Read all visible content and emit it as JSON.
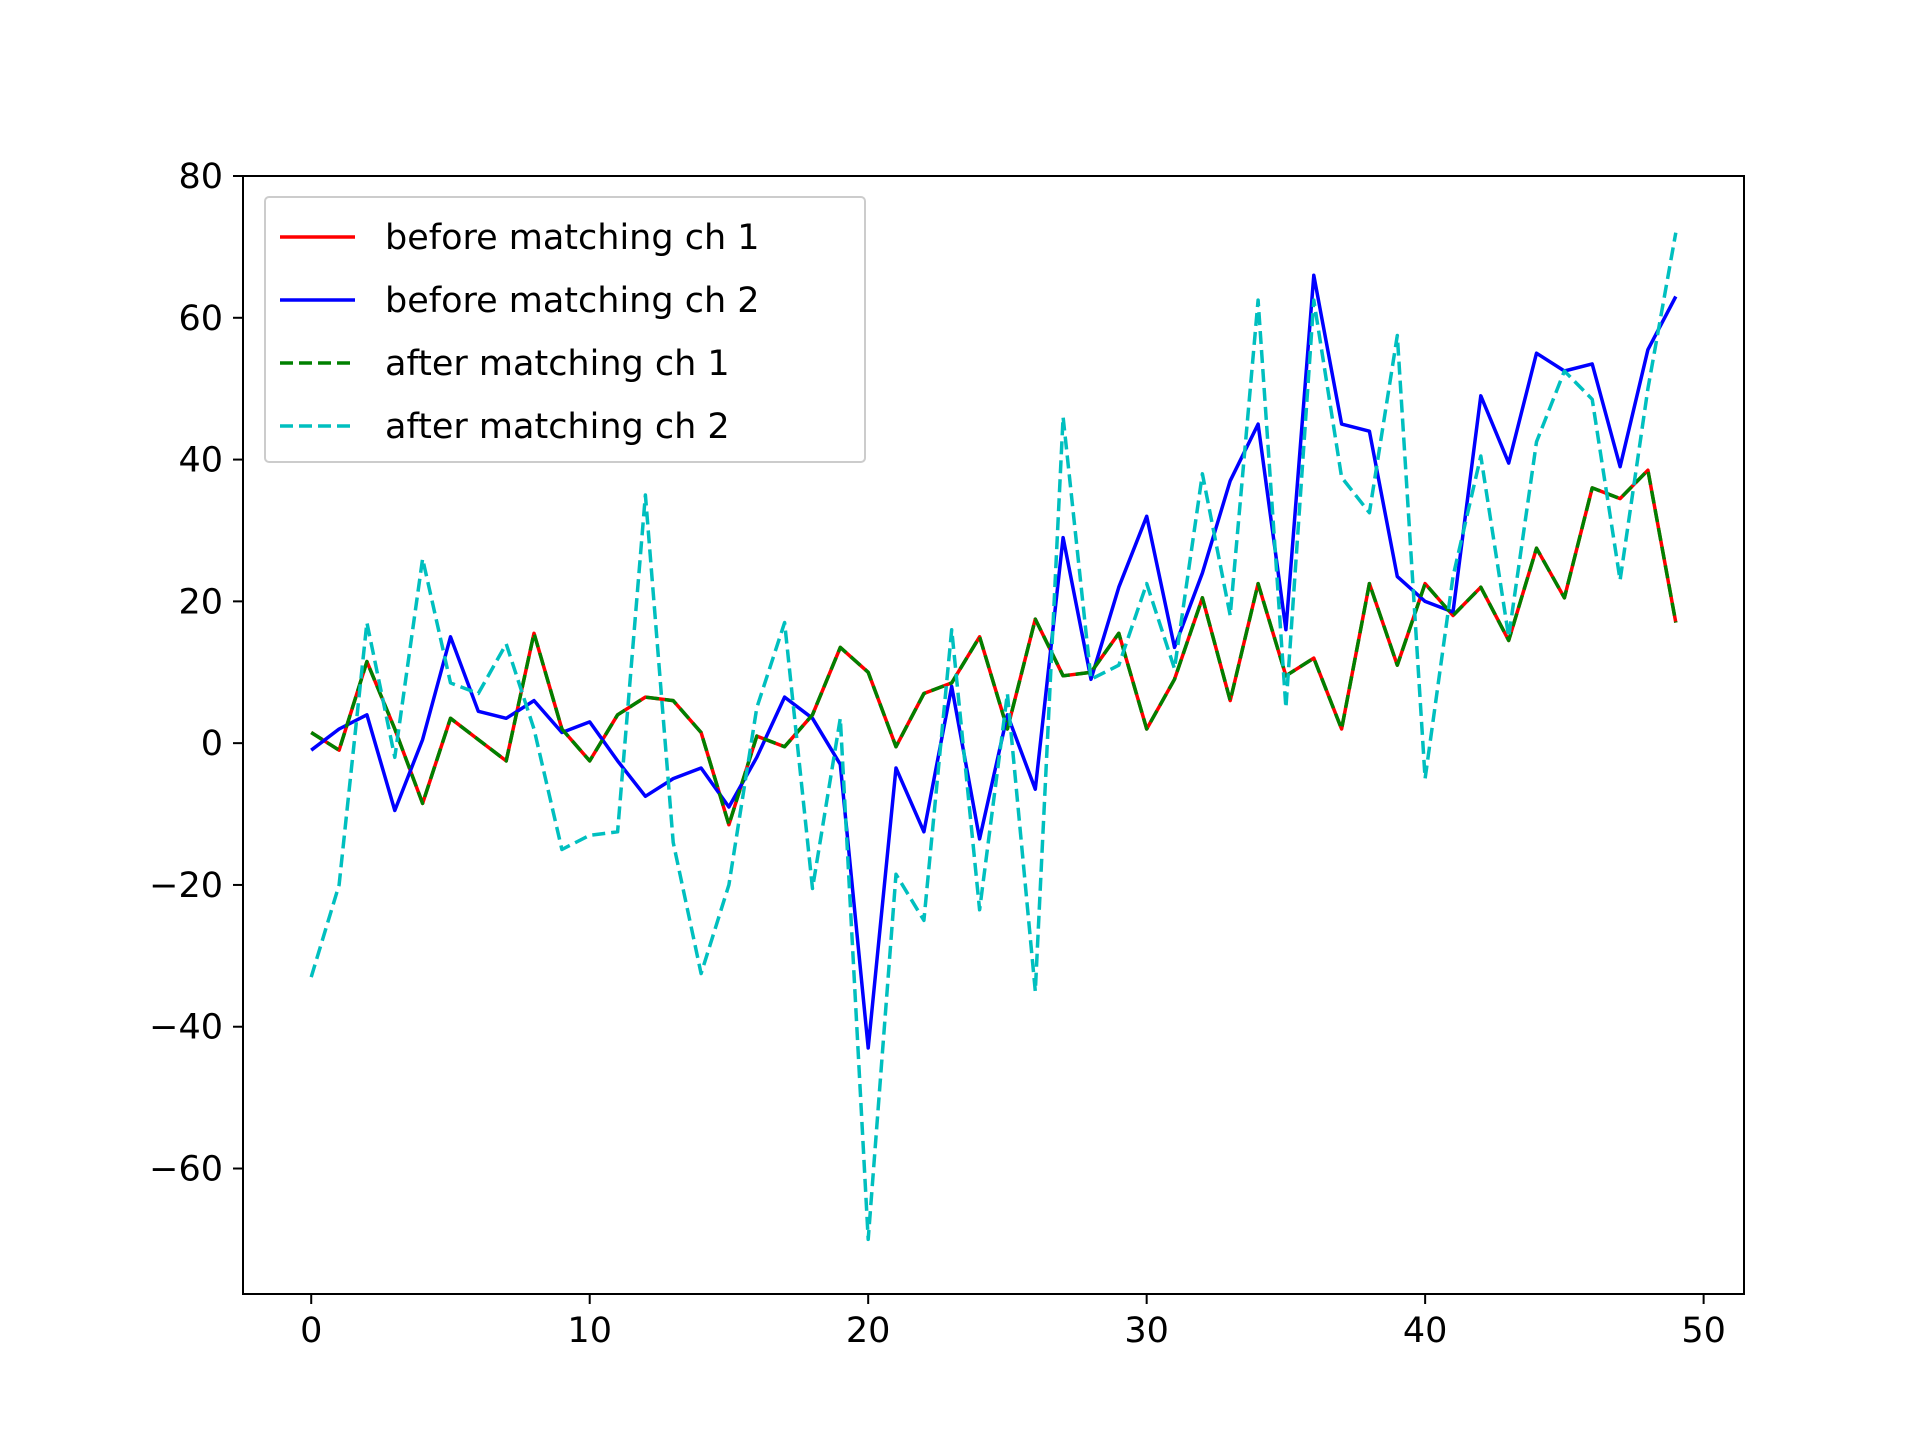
{
  "chart_data": {
    "type": "line",
    "title": "",
    "xlabel": "",
    "ylabel": "",
    "xlim": [
      -2.45,
      51.45
    ],
    "ylim": [
      -77.7,
      80
    ],
    "xticks": [
      0,
      10,
      20,
      30,
      40,
      50
    ],
    "yticks": [
      -60,
      -40,
      -20,
      0,
      20,
      40,
      60,
      80
    ],
    "tick_labels_x": [
      "0",
      "10",
      "20",
      "30",
      "40",
      "50"
    ],
    "tick_labels_y": [
      "−60",
      "−40",
      "−20",
      "0",
      "20",
      "40",
      "60",
      "80"
    ],
    "grid": false,
    "legend_position": "upper-left",
    "x": [
      0,
      1,
      2,
      3,
      4,
      5,
      6,
      7,
      8,
      9,
      10,
      11,
      12,
      13,
      14,
      15,
      16,
      17,
      18,
      19,
      20,
      21,
      22,
      23,
      24,
      25,
      26,
      27,
      28,
      29,
      30,
      31,
      32,
      33,
      34,
      35,
      36,
      37,
      38,
      39,
      40,
      41,
      42,
      43,
      44,
      45,
      46,
      47,
      48,
      49
    ],
    "series": [
      {
        "name": "before matching ch 1",
        "color": "#ff0000",
        "style": "solid",
        "values": [
          1.5,
          -1,
          11.5,
          2,
          -8.5,
          3.5,
          0.5,
          -2.5,
          15.5,
          2,
          -2.5,
          4,
          6.5,
          6,
          1.5,
          -11.5,
          1,
          -0.5,
          4,
          13.5,
          10,
          -0.5,
          7,
          8.5,
          15,
          2,
          17.5,
          9.5,
          10,
          15.5,
          2,
          9,
          20.5,
          6,
          22.5,
          9.5,
          12,
          2,
          22.5,
          11,
          22.5,
          18,
          22,
          14.5,
          27.5,
          20.5,
          36,
          34.5,
          38.5,
          17
        ]
      },
      {
        "name": "before matching ch 2",
        "color": "#0000ff",
        "style": "solid",
        "values": [
          -1,
          2,
          4,
          -9.5,
          0.5,
          15,
          4.5,
          3.5,
          6,
          1.5,
          3,
          -2.5,
          -7.5,
          -5,
          -3.5,
          -9,
          -2,
          6.5,
          3.5,
          -3,
          -43,
          -3.5,
          -12.5,
          8,
          -13.5,
          4,
          -6.5,
          29,
          9,
          22,
          32,
          13.5,
          24,
          37,
          45,
          16,
          66,
          45,
          44,
          23.5,
          20,
          18.5,
          49,
          39.5,
          55,
          52.5,
          53.5,
          39,
          55.5,
          63
        ]
      },
      {
        "name": "after matching ch 1",
        "color": "#008000",
        "style": "dashed",
        "values": [
          1.5,
          -1,
          11.5,
          2,
          -8.5,
          3.5,
          0.5,
          -2.5,
          15.5,
          2,
          -2.5,
          4,
          6.5,
          6,
          1.5,
          -11.5,
          1,
          -0.5,
          4,
          13.5,
          10,
          -0.5,
          7,
          8.5,
          15,
          2,
          17.5,
          9.5,
          10,
          15.5,
          2,
          9,
          20.5,
          6,
          22.5,
          9.5,
          12,
          2,
          22.5,
          11,
          22.5,
          18,
          22,
          14.5,
          27.5,
          20.5,
          36,
          34.5,
          38.5,
          17
        ]
      },
      {
        "name": "after matching ch 2",
        "color": "#00bfbf",
        "style": "dashed",
        "values": [
          -33,
          -20,
          17,
          -2,
          26,
          8.5,
          7,
          14,
          2,
          -15,
          -13,
          -12.5,
          35,
          -14,
          -32.5,
          -20,
          5,
          17,
          -20.5,
          3.5,
          -70,
          -18.5,
          -25,
          16,
          -23.5,
          7,
          -35,
          46,
          9,
          11,
          22.5,
          10.5,
          38,
          18,
          62.5,
          5,
          62.5,
          37.5,
          32.5,
          57.5,
          -5,
          23.5,
          40.5,
          15,
          42.5,
          52.5,
          48.5,
          23,
          50,
          72
        ]
      }
    ]
  }
}
